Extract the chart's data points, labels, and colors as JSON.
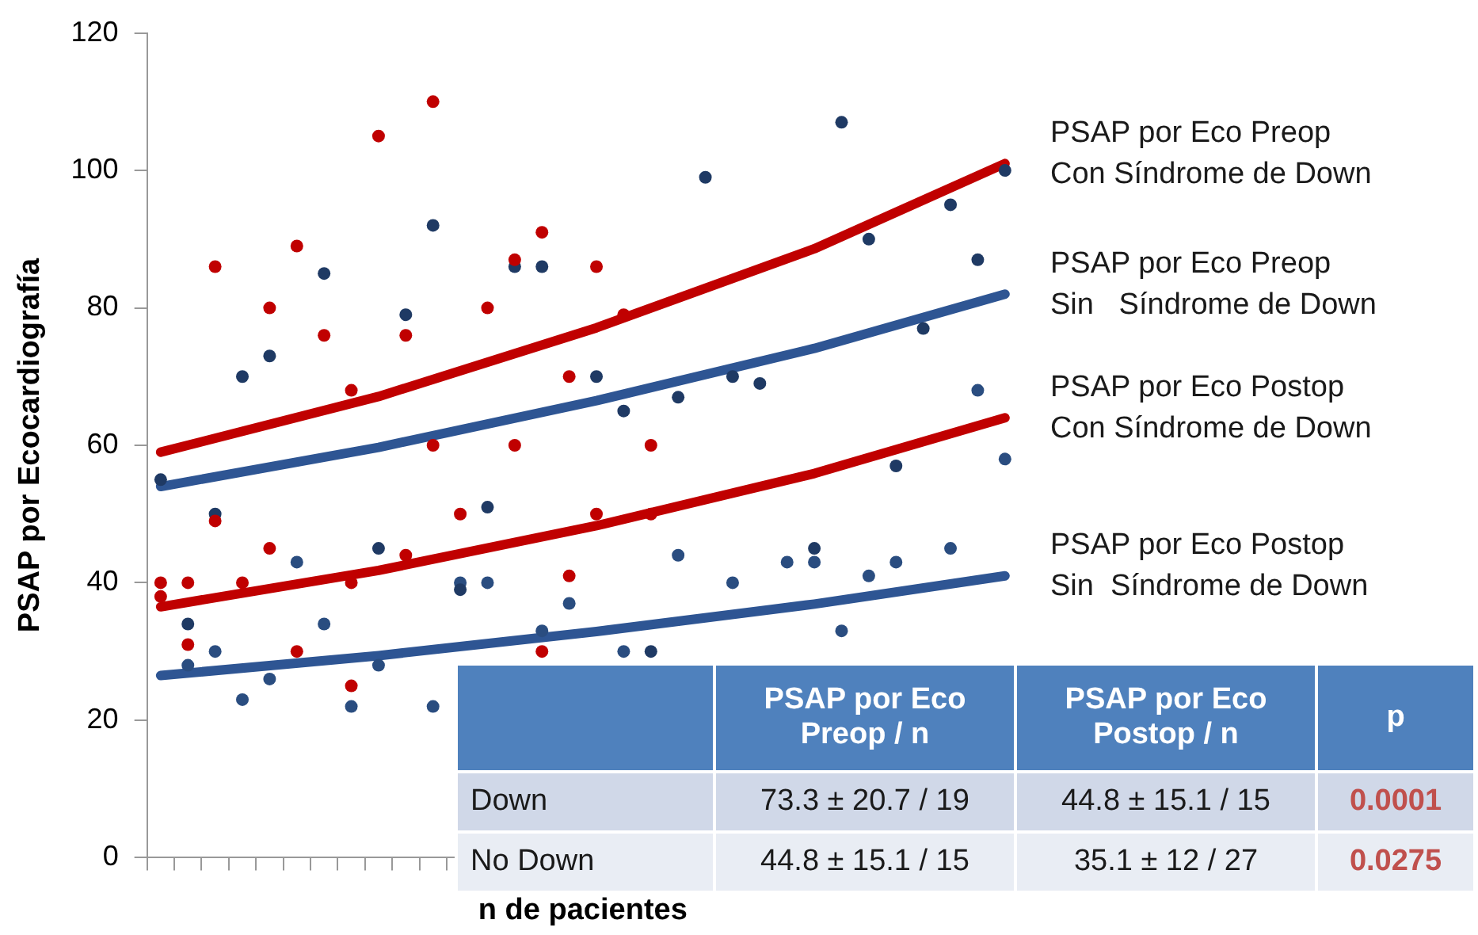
{
  "chart_data": {
    "type": "scatter",
    "xlabel": "n de pacientes",
    "ylabel": "PSAP por Ecocardiografía",
    "categories": [
      null,
      null,
      null,
      null,
      null,
      null,
      null,
      null,
      null,
      null,
      null,
      null,
      null,
      null,
      null,
      null,
      null,
      null,
      null,
      null,
      null,
      null,
      null,
      null,
      null,
      null,
      null,
      null,
      null,
      null,
      null,
      null
    ],
    "ylim": [
      0,
      120
    ],
    "yticks": [
      0,
      20,
      40,
      60,
      80,
      100,
      120
    ],
    "tick_labels": "y",
    "legend": "right",
    "marker": "circle",
    "series": [
      {
        "color": "#c00000",
        "values": [
          null,
          null,
          86,
          null,
          80,
          89,
          76,
          68,
          105,
          76,
          110,
          null,
          80,
          87,
          91,
          70,
          86,
          79,
          60,
          null,
          null,
          null,
          null,
          null,
          null,
          null,
          null,
          null,
          null,
          null,
          null,
          null
        ]
      },
      {
        "color": "#c00000",
        "values": [
          40,
          40,
          49,
          40,
          45,
          30,
          null,
          40,
          null,
          44,
          null,
          50,
          null,
          null,
          30,
          41,
          50,
          null,
          50,
          null,
          null,
          null,
          null,
          null,
          null,
          null,
          null,
          null,
          null,
          null,
          null,
          null
        ]
      },
      {
        "color": "#c00000",
        "values": [
          38,
          31,
          null,
          null,
          null,
          null,
          null,
          25,
          null,
          null,
          60,
          null,
          null,
          60,
          null,
          null,
          null,
          null,
          null,
          null,
          null,
          null,
          null,
          null,
          null,
          null,
          null,
          null,
          null,
          null,
          null,
          null
        ]
      },
      {
        "color": "#1f3a64",
        "values": [
          55,
          34,
          50,
          70,
          73,
          null,
          85,
          null,
          45,
          79,
          92,
          39,
          51,
          86,
          86,
          null,
          70,
          65,
          30,
          67,
          99,
          70,
          69,
          null,
          45,
          107,
          90,
          57,
          77,
          95,
          87,
          100
        ]
      },
      {
        "color": "#2a4d80",
        "values": [
          null,
          28,
          30,
          23,
          26,
          43,
          34,
          22,
          28,
          null,
          22,
          40,
          40,
          null,
          33,
          37,
          null,
          30,
          null,
          44,
          null,
          40,
          null,
          43,
          43,
          33,
          41,
          43,
          null,
          45,
          68,
          58
        ]
      },
      {
        "type": "line",
        "marker": "none",
        "name": "PSAP por Eco Preop\nCon Síndrome de Down",
        "color": "#c00000",
        "values": [
          59,
          null,
          null,
          null,
          null,
          null,
          null,
          null,
          67.1,
          null,
          null,
          null,
          null,
          null,
          null,
          null,
          77.1,
          null,
          null,
          null,
          null,
          null,
          null,
          null,
          88.6,
          null,
          null,
          null,
          null,
          null,
          null,
          101
        ]
      },
      {
        "type": "line",
        "marker": "none",
        "name": "PSAP por Eco Preop\nSin   Síndrome de Down",
        "color": "#2e5593",
        "values": [
          54,
          null,
          null,
          null,
          null,
          null,
          null,
          null,
          59.7,
          null,
          null,
          null,
          null,
          null,
          null,
          null,
          66.5,
          null,
          null,
          null,
          null,
          null,
          null,
          null,
          74.1,
          null,
          null,
          null,
          null,
          null,
          null,
          82
        ]
      },
      {
        "type": "line",
        "marker": "none",
        "name": "PSAP por Eco Postop\nCon Síndrome de Down",
        "color": "#c00000",
        "values": [
          36.5,
          null,
          null,
          null,
          null,
          null,
          null,
          null,
          41.8,
          null,
          null,
          null,
          null,
          null,
          null,
          null,
          48.3,
          null,
          null,
          null,
          null,
          null,
          null,
          null,
          55.9,
          null,
          null,
          null,
          null,
          null,
          null,
          64
        ]
      },
      {
        "type": "line",
        "marker": "none",
        "name": "PSAP por Eco Postop\nSin  Síndrome de Down",
        "color": "#2e5593",
        "values": [
          26.5,
          null,
          null,
          null,
          null,
          null,
          null,
          null,
          29.4,
          null,
          null,
          null,
          null,
          null,
          null,
          null,
          32.9,
          null,
          null,
          null,
          null,
          null,
          null,
          null,
          36.9,
          null,
          null,
          null,
          null,
          null,
          null,
          41
        ]
      }
    ],
    "annotations": [
      "PSAP por Eco Preop / n",
      "PSAP por Eco Postop / n",
      "p",
      "Down",
      "73.3 ± 20.7 / 19",
      "44.8 ± 15.1 / 15",
      "0.0001",
      "No Down",
      "44.8 ± 15.1 / 15",
      "35.1 ± 12 / 27",
      "0.0275"
    ]
  }
}
